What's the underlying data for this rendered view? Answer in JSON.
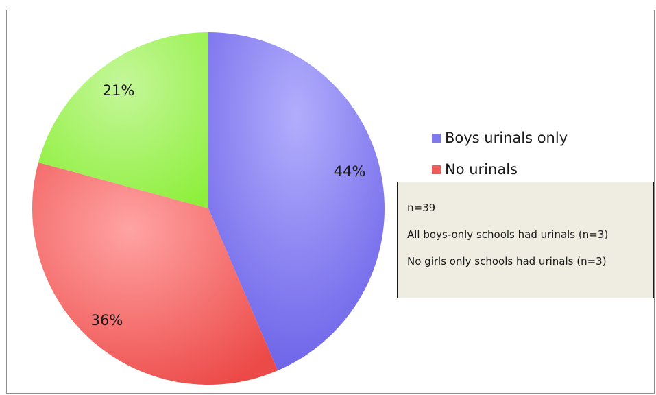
{
  "chart_data": {
    "type": "pie",
    "slices": [
      {
        "label": "Boys urinals only",
        "value": 44,
        "display": "44%",
        "color": "#8a84f0"
      },
      {
        "label": "No urinals",
        "value": 36,
        "display": "36%",
        "color": "#f07070"
      },
      {
        "label": "",
        "value": 21,
        "display": "21%",
        "color": "#a3f25a"
      }
    ],
    "legend": [
      "Boys urinals only",
      "No urinals"
    ],
    "legend_position": "right"
  },
  "legend": {
    "items": [
      {
        "label": "Boys urinals only",
        "color": "#7f79ee"
      },
      {
        "label": "No urinals",
        "color": "#ef5a5a"
      }
    ]
  },
  "note": {
    "lines": [
      "n=39",
      "All boys-only schools had urinals (n=3)",
      "No girls only schools had urinals (n=3)"
    ]
  }
}
